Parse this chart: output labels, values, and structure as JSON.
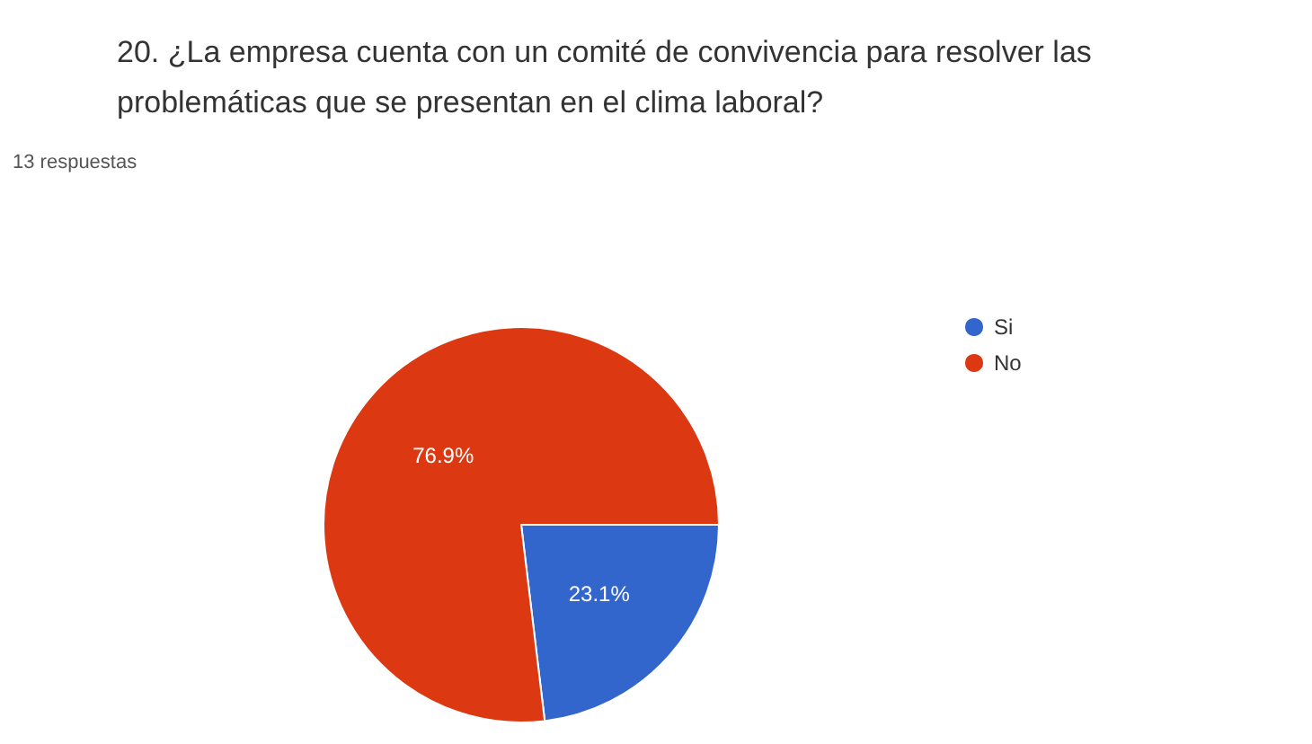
{
  "chart_data": {
    "type": "pie",
    "title": "20. ¿La empresa cuenta con un comité de convivencia para resolver las problemáticas que se presentan en el clima laboral?",
    "subtitle": "13 respuestas",
    "categories": [
      "Si",
      "No"
    ],
    "values": [
      23.1,
      76.9
    ],
    "colors": [
      "#3366cc",
      "#dc3912"
    ],
    "value_labels": [
      "23.1%",
      "76.9%"
    ],
    "legend": "right"
  }
}
